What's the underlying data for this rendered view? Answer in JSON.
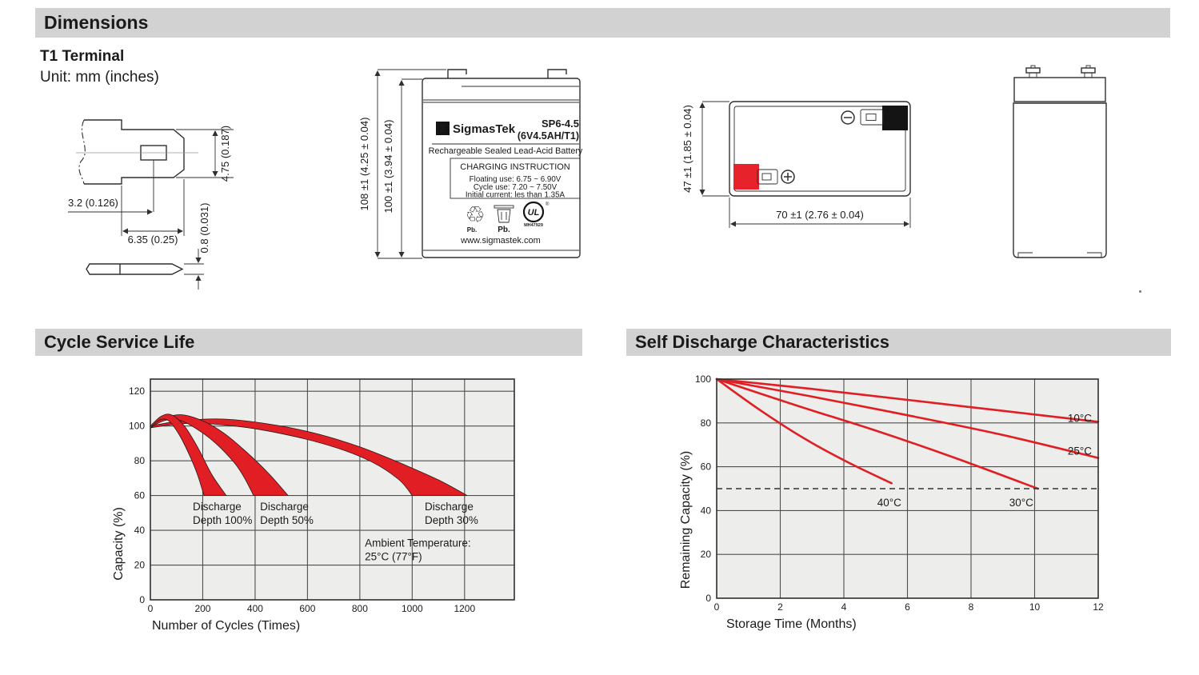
{
  "colors": {
    "bar_bg": "#d2d2d2",
    "chart_bg": "#ededeb",
    "grid": "#4f4f4f",
    "border": "#2e2e2e",
    "red": "#e01e24",
    "ink": "#1b1b1b",
    "line_art": "#2f2f2f",
    "terminal_red": "#e8222b",
    "terminal_black": "#141414"
  },
  "header": {
    "title": "Dimensions",
    "terminal_type": "T1 Terminal",
    "unit": "Unit: mm (inches)"
  },
  "terminal_drawing": {
    "dim_tab_height": "4.75 (0.187)",
    "dim_hole": "3.2 (0.126)",
    "dim_tab_width": "6.35 (0.25)",
    "dim_thickness": "0.8 (0.031)"
  },
  "front_view": {
    "dim_total_height": "108 ±1 (4.25 ± 0.04)",
    "dim_case_height": "100 ±1 (3.94 ± 0.04)",
    "sigma": "Σ",
    "brand": "SigmasTek",
    "model": "SP6-4.5",
    "rating": "(6V4.5AH/T1)",
    "type_line": "Rechargeable Sealed Lead-Acid Battery",
    "charging_title": "CHARGING INSTRUCTION",
    "charging_lines": [
      "Floating use: 6.75 ~ 6.90V",
      "Cycle use: 7.20 ~ 7.50V",
      "Initial current: les than 1.35A"
    ],
    "recycle_symbol": "♲",
    "pb_recycle": "Pb.",
    "pb_bin": "Pb.",
    "ul_text": "UL",
    "ul_reg": "®",
    "ul_number": "MH47929",
    "website": "www.sigmastek.com"
  },
  "top_view": {
    "dim_width": "47 ±1 (1.85 ± 0.04)",
    "dim_length": "70 ±1 (2.76 ± 0.04)"
  },
  "chart_data": [
    {
      "type": "area",
      "title": "Cycle Service Life",
      "xlabel": "Number of Cycles (Times)",
      "ylabel": "Capacity (%)",
      "xlim": [
        0,
        1390
      ],
      "ylim": [
        0,
        127
      ],
      "xticks": [
        0,
        200,
        400,
        600,
        800,
        1000,
        1200
      ],
      "yticks": [
        0,
        20,
        40,
        60,
        80,
        100,
        120
      ],
      "grid": true,
      "bands": [
        {
          "name": "Discharge Depth 30%",
          "upper": [
            [
              0,
              100
            ],
            [
              120,
              103
            ],
            [
              280,
              104
            ],
            [
              480,
              100.5
            ],
            [
              650,
              95
            ],
            [
              800,
              88
            ],
            [
              950,
              79
            ],
            [
              1100,
              69
            ],
            [
              1210,
              60
            ]
          ],
          "lower": [
            [
              0,
              99
            ],
            [
              150,
              101.5
            ],
            [
              350,
              99.5
            ],
            [
              550,
              94
            ],
            [
              720,
              87
            ],
            [
              850,
              79
            ],
            [
              950,
              69
            ],
            [
              1000,
              60
            ]
          ]
        },
        {
          "name": "Discharge Depth 50%",
          "upper": [
            [
              0,
              100
            ],
            [
              50,
              104.5
            ],
            [
              120,
              106.5
            ],
            [
              200,
              103
            ],
            [
              280,
              96
            ],
            [
              360,
              86
            ],
            [
              450,
              73
            ],
            [
              526,
              60
            ]
          ],
          "lower": [
            [
              0,
              99
            ],
            [
              50,
              103
            ],
            [
              110,
              103.5
            ],
            [
              180,
              98
            ],
            [
              250,
              90
            ],
            [
              320,
              79
            ],
            [
              360,
              70
            ],
            [
              394,
              60
            ]
          ]
        },
        {
          "name": "Discharge Depth 100%",
          "upper": [
            [
              0,
              100
            ],
            [
              40,
              105.5
            ],
            [
              80,
              106.5
            ],
            [
              130,
              100
            ],
            [
              180,
              88
            ],
            [
              235,
              72
            ],
            [
              290,
              60
            ]
          ],
          "lower": [
            [
              0,
              99
            ],
            [
              35,
              103.5
            ],
            [
              70,
              103
            ],
            [
              110,
              95
            ],
            [
              150,
              83
            ],
            [
              180,
              72
            ],
            [
              205,
              60
            ]
          ]
        }
      ],
      "annotations": [
        {
          "lines": [
            "Discharge",
            "Depth 100%"
          ],
          "x": 162,
          "y": 51.5
        },
        {
          "lines": [
            "Discharge",
            "Depth 50%"
          ],
          "x": 419,
          "y": 51.5
        },
        {
          "lines": [
            "Discharge",
            "Depth 30%"
          ],
          "x": 1048,
          "y": 51.5
        },
        {
          "lines": [
            "Ambient Temperature:",
            "25°C (77°F)"
          ],
          "x": 819,
          "y": 30.5
        }
      ]
    },
    {
      "type": "line",
      "title": "Self Discharge Characteristics",
      "xlabel": "Storage Time (Months)",
      "ylabel": "Remaining Capacity (%)",
      "xlim": [
        0,
        12
      ],
      "ylim": [
        0,
        100
      ],
      "xticks": [
        0,
        2,
        4,
        6,
        8,
        10,
        12
      ],
      "yticks": [
        0,
        20,
        40,
        60,
        80,
        100
      ],
      "grid": true,
      "dashed_line_y": 50,
      "series": [
        {
          "name": "10°C",
          "points": [
            [
              0,
              100
            ],
            [
              3,
              95.5
            ],
            [
              6,
              90.5
            ],
            [
              9,
              85.5
            ],
            [
              12,
              80.5
            ]
          ],
          "label_x": 11.42,
          "label_y": 82
        },
        {
          "name": "25°C",
          "points": [
            [
              0,
              100
            ],
            [
              3,
              92
            ],
            [
              6,
              83.5
            ],
            [
              9,
              74.5
            ],
            [
              12,
              64
            ]
          ],
          "label_x": 11.42,
          "label_y": 67
        },
        {
          "name": "30°C",
          "points": [
            [
              0,
              100
            ],
            [
              2.5,
              88
            ],
            [
              5,
              76.5
            ],
            [
              7.5,
              64
            ],
            [
              10.1,
              50
            ]
          ],
          "label_x": 9.58,
          "label_y": 43.5
        },
        {
          "name": "40°C",
          "points": [
            [
              0,
              100
            ],
            [
              1.4,
              85.5
            ],
            [
              2.8,
              72.5
            ],
            [
              4.2,
              61.5
            ],
            [
              5.5,
              52.5
            ]
          ],
          "label_x": 5.43,
          "label_y": 43.5
        }
      ]
    }
  ]
}
